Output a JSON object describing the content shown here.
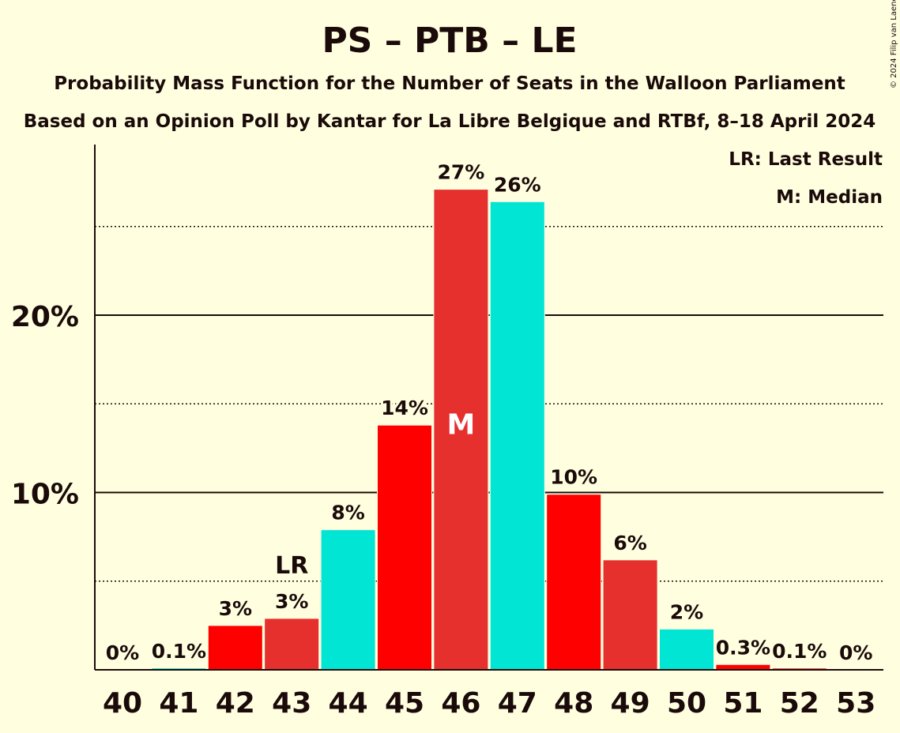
{
  "chart_data": {
    "type": "bar",
    "title": "PS – PTB – LE",
    "subtitle": "Probability Mass Function for the Number of Seats in the Walloon Parliament",
    "subtitle2": "Based on an Opinion Poll by Kantar for La Libre Belgique and RTBf, 8–18 April 2024",
    "copyright": "© 2024 Filip van Laenen",
    "legend": {
      "last_result": "LR: Last Result",
      "median": "M: Median",
      "placement": "top-right"
    },
    "xlabel": "",
    "ylabel": "",
    "ylim": [
      0,
      30
    ],
    "yticks": [
      {
        "value": 10,
        "label": "10%"
      },
      {
        "value": 20,
        "label": "20%"
      }
    ],
    "minor_gridlines": [
      5,
      15,
      25
    ],
    "categories": [
      "40",
      "41",
      "42",
      "43",
      "44",
      "45",
      "46",
      "47",
      "48",
      "49",
      "50",
      "51",
      "52",
      "53"
    ],
    "values": [
      0,
      0.1,
      2.5,
      2.9,
      7.9,
      13.8,
      27.1,
      26.4,
      9.9,
      6.2,
      2.3,
      0.3,
      0.1,
      0
    ],
    "value_labels": [
      "0%",
      "0.1%",
      "3%",
      "3%",
      "8%",
      "14%",
      "27%",
      "26%",
      "10%",
      "6%",
      "2%",
      "0.3%",
      "0.1%",
      "0%"
    ],
    "bar_colors": [
      "#ff0000",
      "#00e5d4",
      "#ff0000",
      "#e5302e",
      "#00e5d4",
      "#ff0000",
      "#e5302e",
      "#00e5d4",
      "#ff0000",
      "#e5302e",
      "#00e5d4",
      "#ff0000",
      "#e5302e",
      "#00e5d4"
    ],
    "last_result": {
      "category": "43",
      "label": "LR"
    },
    "median": {
      "category": "46",
      "label": "M"
    }
  }
}
